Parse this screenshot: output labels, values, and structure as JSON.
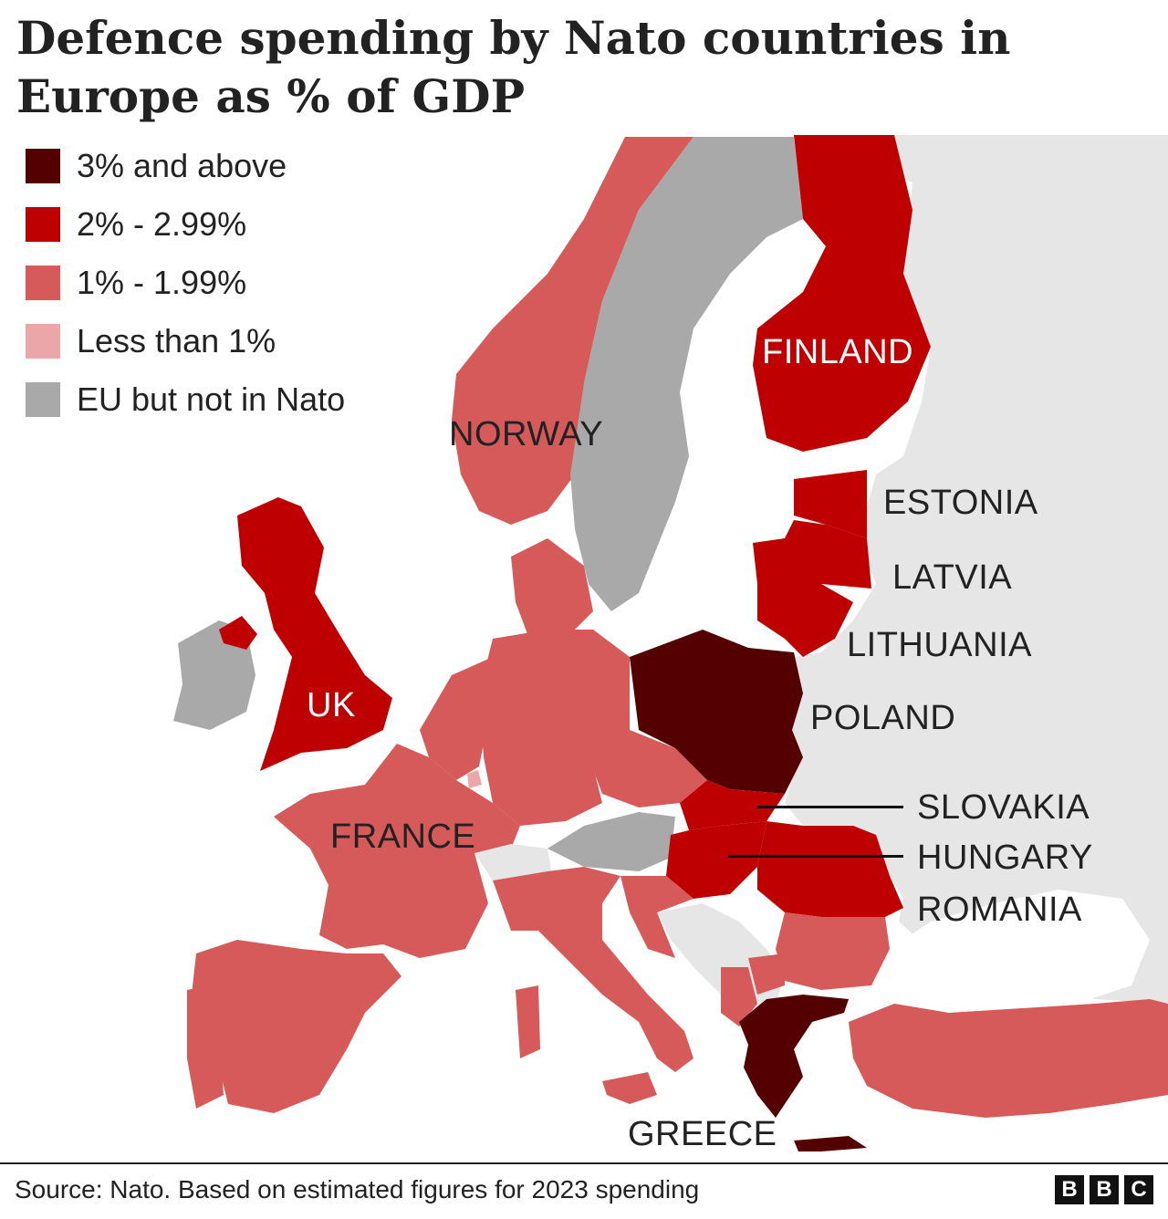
{
  "title": "Defence spending by Nato countries in Europe as % of GDP",
  "legend": [
    {
      "label": "3% and above",
      "color": "#540000"
    },
    {
      "label": "2% - 2.99%",
      "color": "#bf0000"
    },
    {
      "label": "1% - 1.99%",
      "color": "#d65a5a"
    },
    {
      "label": "Less than 1%",
      "color": "#eba7a7"
    },
    {
      "label": "EU but not in Nato",
      "color": "#a9a9a9"
    }
  ],
  "colors": {
    "sea": "#ffffff",
    "non_member_land": "#e6e6e6"
  },
  "countries": {
    "norway": {
      "label": "NORWAY",
      "category": "1% - 1.99%"
    },
    "finland": {
      "label": "FINLAND",
      "category": "2% - 2.99%"
    },
    "estonia": {
      "label": "ESTONIA",
      "category": "2% - 2.99%"
    },
    "latvia": {
      "label": "LATVIA",
      "category": "2% - 2.99%"
    },
    "lithuania": {
      "label": "LITHUANIA",
      "category": "2% - 2.99%"
    },
    "poland": {
      "label": "POLAND",
      "category": "3% and above"
    },
    "uk": {
      "label": "UK",
      "category": "2% - 2.99%"
    },
    "france": {
      "label": "FRANCE",
      "category": "1% - 1.99%"
    },
    "slovakia": {
      "label": "SLOVAKIA",
      "category": "2% - 2.99%"
    },
    "hungary": {
      "label": "HUNGARY",
      "category": "2% - 2.99%"
    },
    "romania": {
      "label": "ROMANIA",
      "category": "2% - 2.99%"
    },
    "greece": {
      "label": "GREECE",
      "category": "3% and above"
    }
  },
  "source": "Source: Nato. Based on estimated figures for 2023 spending",
  "logo": [
    "B",
    "B",
    "C"
  ]
}
